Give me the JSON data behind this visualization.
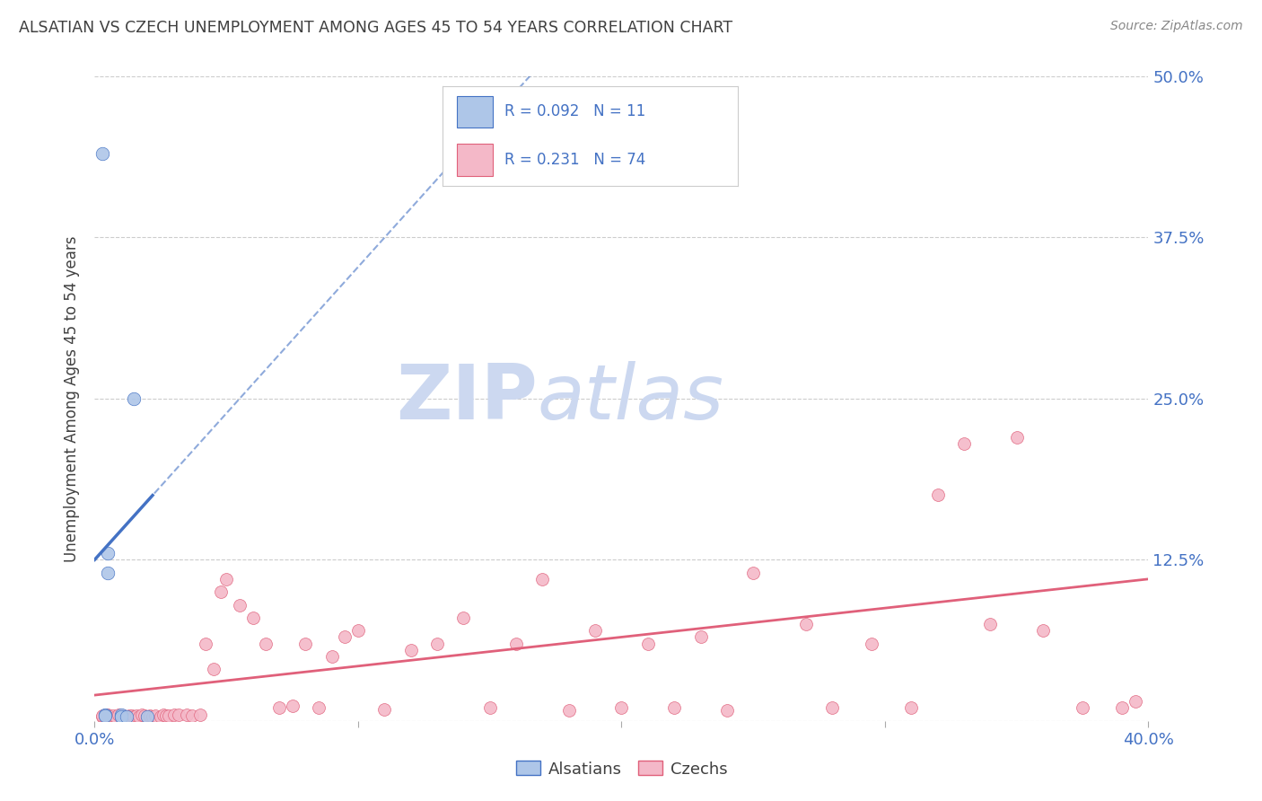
{
  "title": "ALSATIAN VS CZECH UNEMPLOYMENT AMONG AGES 45 TO 54 YEARS CORRELATION CHART",
  "source": "Source: ZipAtlas.com",
  "ylabel": "Unemployment Among Ages 45 to 54 years",
  "xlim": [
    0.0,
    0.4
  ],
  "ylim": [
    0.0,
    0.5
  ],
  "xticks": [
    0.0,
    0.1,
    0.2,
    0.3,
    0.4
  ],
  "yticks": [
    0.0,
    0.125,
    0.25,
    0.375,
    0.5
  ],
  "xticklabels": [
    "0.0%",
    "",
    "",
    "",
    "40.0%"
  ],
  "yticklabels_right": [
    "",
    "12.5%",
    "25.0%",
    "37.5%",
    "50.0%"
  ],
  "alsatian_R": 0.092,
  "alsatian_N": 11,
  "czech_R": 0.231,
  "czech_N": 74,
  "alsatian_color": "#aec6e8",
  "czech_color": "#f4b8c8",
  "alsatian_line_color": "#4472c4",
  "czech_line_color": "#e0607a",
  "alsatian_x": [
    0.003,
    0.004,
    0.004,
    0.005,
    0.005,
    0.01,
    0.01,
    0.01,
    0.012,
    0.015,
    0.02
  ],
  "alsatian_y": [
    0.44,
    0.005,
    0.004,
    0.115,
    0.13,
    0.003,
    0.005,
    0.003,
    0.003,
    0.25,
    0.003
  ],
  "czech_x": [
    0.003,
    0.003,
    0.004,
    0.005,
    0.005,
    0.006,
    0.007,
    0.008,
    0.009,
    0.01,
    0.01,
    0.011,
    0.012,
    0.013,
    0.014,
    0.015,
    0.016,
    0.017,
    0.018,
    0.019,
    0.02,
    0.021,
    0.022,
    0.023,
    0.025,
    0.026,
    0.027,
    0.028,
    0.03,
    0.032,
    0.035,
    0.037,
    0.04,
    0.042,
    0.045,
    0.048,
    0.05,
    0.055,
    0.06,
    0.065,
    0.07,
    0.075,
    0.08,
    0.085,
    0.09,
    0.095,
    0.1,
    0.11,
    0.12,
    0.13,
    0.14,
    0.15,
    0.16,
    0.17,
    0.18,
    0.19,
    0.2,
    0.21,
    0.22,
    0.23,
    0.24,
    0.25,
    0.27,
    0.28,
    0.295,
    0.31,
    0.32,
    0.33,
    0.34,
    0.35,
    0.36,
    0.375,
    0.39,
    0.395
  ],
  "czech_y": [
    0.003,
    0.004,
    0.003,
    0.005,
    0.004,
    0.003,
    0.004,
    0.003,
    0.005,
    0.004,
    0.003,
    0.004,
    0.003,
    0.004,
    0.004,
    0.003,
    0.004,
    0.003,
    0.005,
    0.004,
    0.003,
    0.004,
    0.003,
    0.004,
    0.003,
    0.005,
    0.004,
    0.004,
    0.005,
    0.005,
    0.005,
    0.004,
    0.005,
    0.06,
    0.04,
    0.1,
    0.11,
    0.09,
    0.08,
    0.06,
    0.01,
    0.012,
    0.06,
    0.01,
    0.05,
    0.065,
    0.07,
    0.009,
    0.055,
    0.06,
    0.08,
    0.01,
    0.06,
    0.11,
    0.008,
    0.07,
    0.01,
    0.06,
    0.01,
    0.065,
    0.008,
    0.115,
    0.075,
    0.01,
    0.06,
    0.01,
    0.175,
    0.215,
    0.075,
    0.22,
    0.07,
    0.01,
    0.01,
    0.015
  ],
  "als_line_start_x": 0.0,
  "als_line_end_solid_x": 0.022,
  "als_line_start_y": 0.125,
  "als_line_end_y": 0.175,
  "als_line_slope": 2.27,
  "background_color": "#ffffff",
  "grid_color": "#cccccc",
  "watermark_zip": "ZIP",
  "watermark_atlas": "atlas",
  "watermark_color": "#ccd8f0",
  "title_color": "#404040",
  "tick_label_color": "#4472c4",
  "legend_border_color": "#cccccc"
}
